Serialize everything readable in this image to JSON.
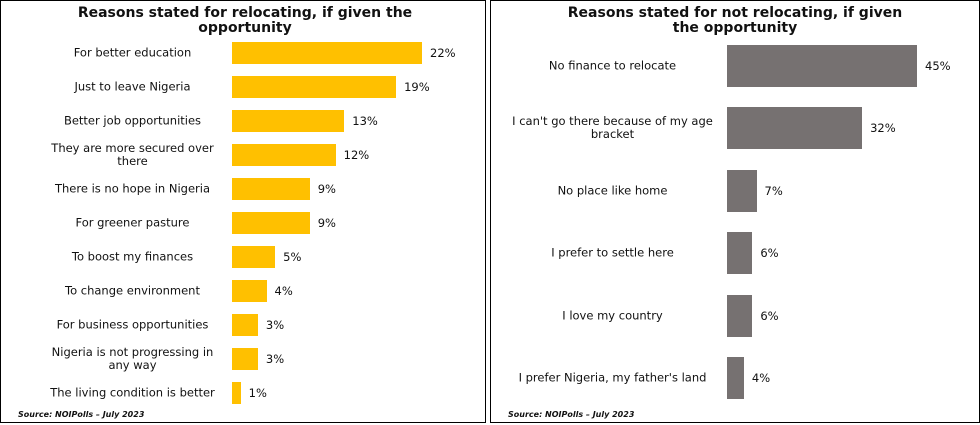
{
  "chart_data": [
    {
      "type": "bar",
      "orientation": "horizontal",
      "title": "Reasons  stated for relocating, if given the opportunity",
      "categories": [
        "For better education",
        "Just to leave Nigeria",
        "Better job opportunities",
        "They are more secured over there",
        "There is no hope in Nigeria",
        "For greener pasture",
        "To boost my finances",
        "To change environment",
        "For business opportunities",
        "Nigeria is not progressing in any way",
        "The living condition is better"
      ],
      "values": [
        22,
        19,
        13,
        12,
        9,
        9,
        5,
        4,
        3,
        3,
        1
      ],
      "value_labels": [
        "22%",
        "19%",
        "13%",
        "12%",
        "9%",
        "9%",
        "5%",
        "4%",
        "3%",
        "3%",
        "1%"
      ],
      "color": "#ffc000",
      "source": "Source: NOIPolls – July 2023"
    },
    {
      "type": "bar",
      "orientation": "horizontal",
      "title": "Reasons  stated for not  relocating, if given the opportunity",
      "categories": [
        "No finance to relocate",
        "I can't go there because of my age bracket",
        "No place like home",
        "I prefer to settle here",
        "I love my country",
        "I prefer Nigeria, my father's land"
      ],
      "values": [
        45,
        32,
        7,
        6,
        6,
        4
      ],
      "value_labels": [
        "45%",
        "32%",
        "7%",
        "6%",
        "6%",
        "4%"
      ],
      "color": "#767171",
      "source": "Source: NOIPolls – July 2023"
    }
  ]
}
